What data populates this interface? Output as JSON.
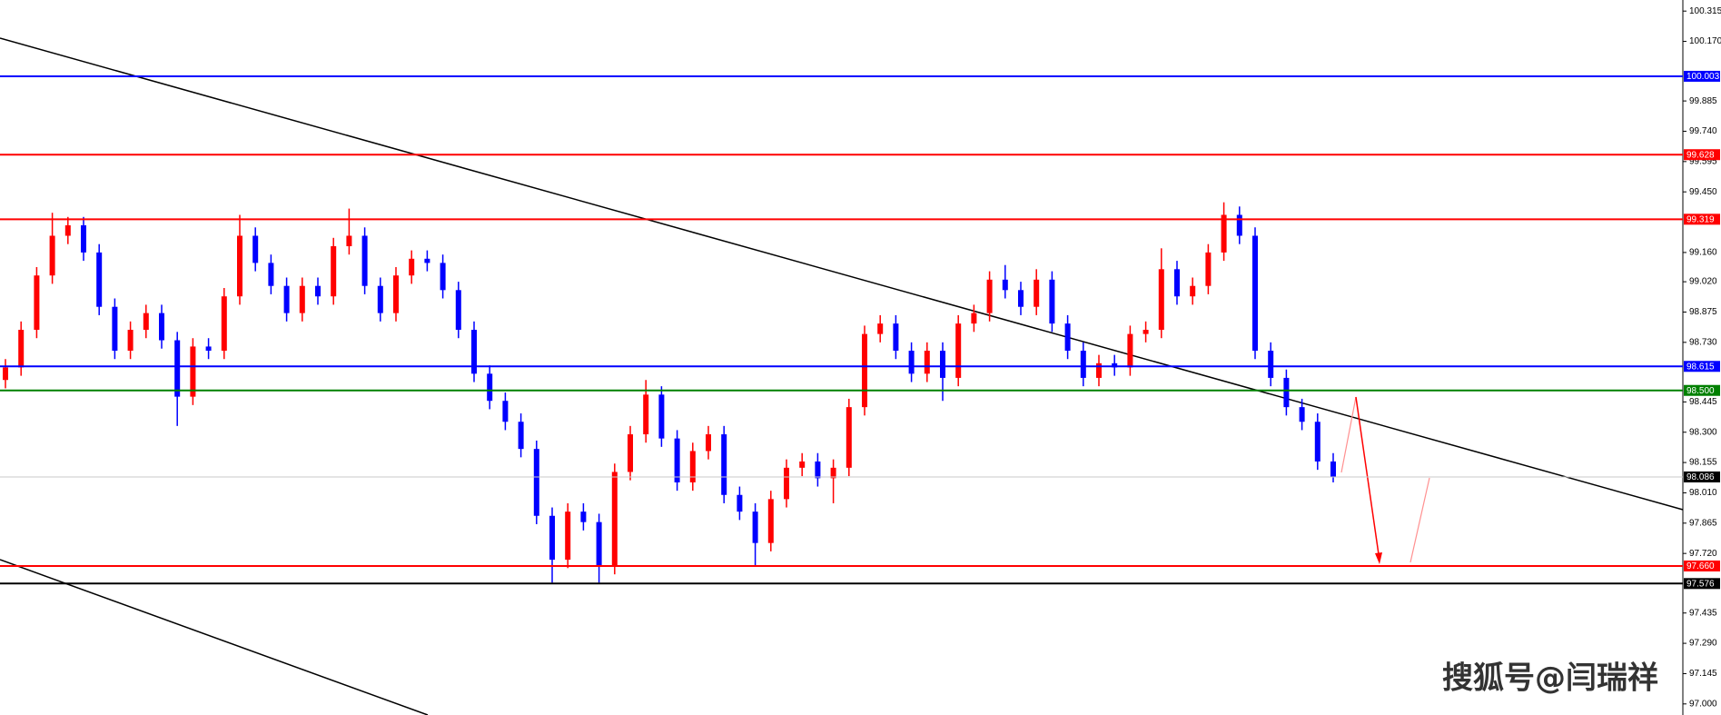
{
  "chart_data": {
    "type": "candlestick",
    "up_color": "#ff0000",
    "down_color": "#0000ff",
    "open": [
      98.55,
      98.61,
      98.79,
      99.05,
      99.24,
      99.29,
      99.16,
      98.9,
      98.69,
      98.79,
      98.87,
      98.74,
      98.47,
      98.71,
      98.69,
      98.95,
      99.24,
      99.11,
      99.0,
      98.87,
      99.0,
      98.95,
      99.19,
      99.24,
      99.0,
      98.87,
      99.05,
      99.13,
      99.11,
      98.98,
      98.79,
      98.58,
      98.45,
      98.35,
      98.22,
      97.9,
      97.69,
      97.92,
      97.87,
      97.66,
      98.11,
      98.29,
      98.48,
      98.27,
      98.06,
      98.21,
      98.29,
      98.0,
      97.92,
      97.77,
      97.98,
      98.13,
      98.16,
      98.08,
      98.13,
      98.42,
      98.77,
      98.82,
      98.69,
      98.58,
      98.69,
      98.56,
      98.82,
      98.87,
      99.03,
      98.98,
      98.9,
      99.03,
      98.82,
      98.69,
      98.56,
      98.63,
      98.61,
      98.77,
      98.79,
      99.08,
      98.95,
      99.0,
      99.16,
      99.34,
      99.24,
      98.69,
      98.56,
      98.42,
      98.35,
      98.16
    ],
    "high": [
      98.65,
      98.83,
      99.09,
      99.35,
      99.33,
      99.33,
      99.2,
      98.94,
      98.83,
      98.91,
      98.91,
      98.78,
      98.75,
      98.75,
      98.99,
      99.34,
      99.28,
      99.15,
      99.04,
      99.04,
      99.04,
      99.23,
      99.37,
      99.28,
      99.04,
      99.09,
      99.17,
      99.17,
      99.15,
      99.02,
      98.83,
      98.62,
      98.49,
      98.39,
      98.26,
      97.94,
      97.96,
      97.96,
      97.91,
      98.15,
      98.33,
      98.55,
      98.52,
      98.31,
      98.25,
      98.33,
      98.33,
      98.04,
      97.96,
      98.02,
      98.17,
      98.2,
      98.2,
      98.17,
      98.46,
      98.81,
      98.86,
      98.86,
      98.73,
      98.73,
      98.73,
      98.86,
      98.91,
      99.07,
      99.1,
      99.02,
      99.08,
      99.07,
      98.86,
      98.73,
      98.67,
      98.67,
      98.81,
      98.83,
      99.18,
      99.12,
      99.04,
      99.2,
      99.4,
      99.38,
      99.28,
      98.73,
      98.6,
      98.46,
      98.39,
      98.2
    ],
    "low": [
      98.51,
      98.57,
      98.75,
      99.01,
      99.2,
      99.12,
      98.86,
      98.65,
      98.65,
      98.75,
      98.7,
      98.33,
      98.43,
      98.65,
      98.65,
      98.91,
      99.07,
      98.96,
      98.83,
      98.83,
      98.91,
      98.91,
      99.15,
      98.96,
      98.83,
      98.83,
      99.01,
      99.07,
      98.94,
      98.75,
      98.54,
      98.41,
      98.31,
      98.18,
      97.86,
      97.58,
      97.65,
      97.83,
      97.58,
      97.62,
      98.07,
      98.25,
      98.23,
      98.02,
      98.02,
      98.17,
      97.96,
      97.88,
      97.66,
      97.73,
      97.94,
      98.09,
      98.04,
      97.96,
      98.09,
      98.38,
      98.73,
      98.65,
      98.54,
      98.54,
      98.45,
      98.52,
      98.78,
      98.83,
      98.94,
      98.86,
      98.86,
      98.78,
      98.65,
      98.52,
      98.52,
      98.57,
      98.57,
      98.73,
      98.75,
      98.91,
      98.91,
      98.96,
      99.12,
      99.2,
      98.65,
      98.52,
      98.38,
      98.31,
      98.12,
      98.06
    ],
    "close": [
      98.61,
      98.79,
      99.05,
      99.24,
      99.29,
      99.16,
      98.9,
      98.69,
      98.79,
      98.87,
      98.74,
      98.47,
      98.71,
      98.69,
      98.95,
      99.24,
      99.11,
      99.0,
      98.87,
      99.0,
      98.95,
      99.19,
      99.24,
      99.0,
      98.87,
      99.05,
      99.13,
      99.11,
      98.98,
      98.79,
      98.58,
      98.45,
      98.35,
      98.22,
      97.9,
      97.69,
      97.92,
      97.87,
      97.66,
      98.11,
      98.29,
      98.48,
      98.27,
      98.06,
      98.21,
      98.29,
      98.0,
      97.92,
      97.77,
      97.98,
      98.13,
      98.16,
      98.08,
      98.13,
      98.42,
      98.77,
      98.82,
      98.69,
      98.58,
      98.69,
      98.56,
      98.82,
      98.87,
      99.03,
      98.98,
      98.9,
      99.03,
      98.82,
      98.69,
      98.56,
      98.63,
      98.61,
      98.77,
      98.79,
      99.08,
      98.95,
      99.0,
      99.16,
      99.34,
      99.24,
      98.69,
      98.56,
      98.42,
      98.35,
      98.16,
      98.086
    ],
    "ylim": [
      96.947,
      100.368
    ],
    "yticks": [
      100.315,
      {
        "value": 100.17,
        "label": "100.170"
      },
      99.885,
      {
        "value": 99.74,
        "label": "99.740"
      },
      99.595,
      {
        "value": 99.45,
        "label": "99.450"
      },
      {
        "value": 99.16,
        "label": "99.160"
      },
      {
        "value": 99.02,
        "label": "99.020"
      },
      98.875,
      {
        "value": 98.73,
        "label": "98.730"
      },
      98.445,
      {
        "value": 98.3,
        "label": "98.300"
      },
      98.155,
      {
        "value": 98.01,
        "label": "98.010"
      },
      97.865,
      {
        "value": 97.72,
        "label": "97.720"
      },
      97.435,
      {
        "value": 97.29,
        "label": "97.290"
      },
      97.145,
      {
        "value": 97.0,
        "label": "97.000"
      }
    ],
    "levels": [
      {
        "price": 100.003,
        "color": "#0000ff"
      },
      {
        "price": 99.628,
        "color": "#ff0000"
      },
      {
        "price": 99.319,
        "color": "#ff0000"
      },
      {
        "price": 98.615,
        "color": "#0000ff"
      },
      {
        "price": 98.5,
        "label": "98.500",
        "color": "#008000"
      },
      {
        "price": 98.086,
        "color": "#000000"
      },
      {
        "price": 97.66,
        "label": "97.660",
        "color": "#ff0000"
      },
      {
        "price": 97.576,
        "color": "#000000"
      }
    ],
    "watermark": "搜狐号@闫瑞祥"
  }
}
